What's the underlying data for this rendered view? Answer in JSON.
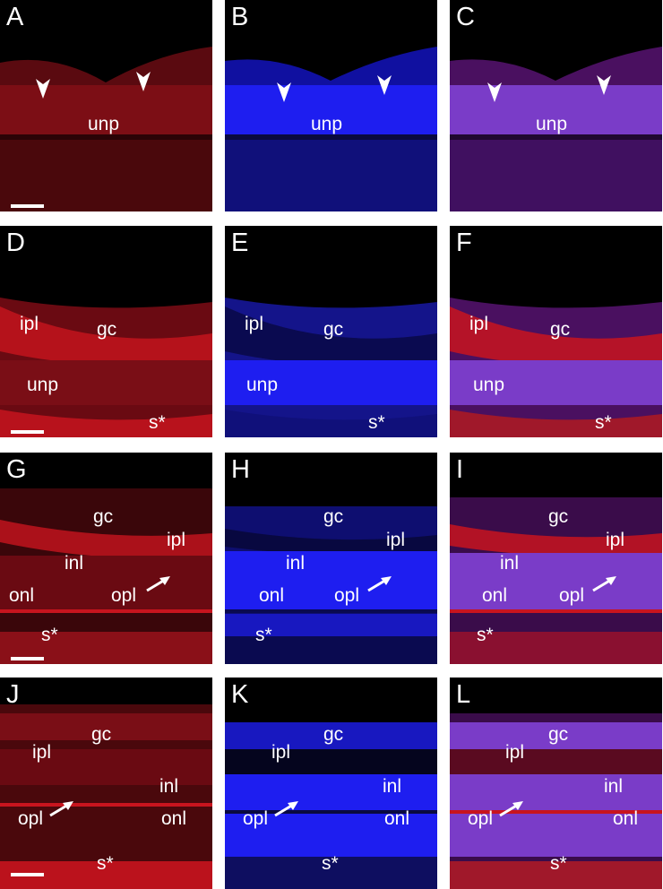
{
  "figure": {
    "rows": [
      {
        "panels": [
          {
            "letter": "A",
            "channel": "red",
            "labels": [
              "unp"
            ],
            "arrowheads": 2,
            "scale_bar": true
          },
          {
            "letter": "B",
            "channel": "blue",
            "labels": [
              "unp"
            ],
            "arrowheads": 2,
            "scale_bar": false
          },
          {
            "letter": "C",
            "channel": "merge",
            "labels": [
              "unp"
            ],
            "arrowheads": 2,
            "scale_bar": false
          }
        ]
      },
      {
        "panels": [
          {
            "letter": "D",
            "channel": "red",
            "labels": [
              "ipl",
              "gc",
              "unp",
              "s*"
            ],
            "scale_bar": true
          },
          {
            "letter": "E",
            "channel": "blue",
            "labels": [
              "ipl",
              "gc",
              "unp",
              "s*"
            ],
            "scale_bar": false
          },
          {
            "letter": "F",
            "channel": "merge",
            "labels": [
              "ipl",
              "gc",
              "unp",
              "s*"
            ],
            "scale_bar": false
          }
        ]
      },
      {
        "panels": [
          {
            "letter": "G",
            "channel": "red",
            "labels": [
              "gc",
              "ipl",
              "inl",
              "onl",
              "opl",
              "s*"
            ],
            "arrow_label": "opl",
            "scale_bar": true
          },
          {
            "letter": "H",
            "channel": "blue",
            "labels": [
              "gc",
              "ipl",
              "inl",
              "onl",
              "opl",
              "s*"
            ],
            "arrow_label": "opl",
            "scale_bar": false
          },
          {
            "letter": "I",
            "channel": "merge",
            "labels": [
              "gc",
              "ipl",
              "inl",
              "onl",
              "opl",
              "s*"
            ],
            "arrow_label": "opl",
            "scale_bar": false
          }
        ]
      },
      {
        "panels": [
          {
            "letter": "J",
            "channel": "red",
            "labels": [
              "gc",
              "ipl",
              "inl",
              "opl",
              "onl",
              "s*"
            ],
            "arrow_label": "opl",
            "scale_bar": true
          },
          {
            "letter": "K",
            "channel": "blue",
            "labels": [
              "gc",
              "ipl",
              "inl",
              "opl",
              "onl",
              "s*"
            ],
            "arrow_label": "opl",
            "scale_bar": false
          },
          {
            "letter": "L",
            "channel": "merge",
            "labels": [
              "gc",
              "ipl",
              "inl",
              "opl",
              "onl",
              "s*"
            ],
            "arrow_label": "opl",
            "scale_bar": false
          }
        ]
      }
    ],
    "colors": {
      "red_channel": "#c8141e",
      "blue_channel": "#1e1ef0",
      "merge_channel": "#7a3cc8",
      "background": "#000000",
      "annotation": "#ffffff"
    }
  }
}
